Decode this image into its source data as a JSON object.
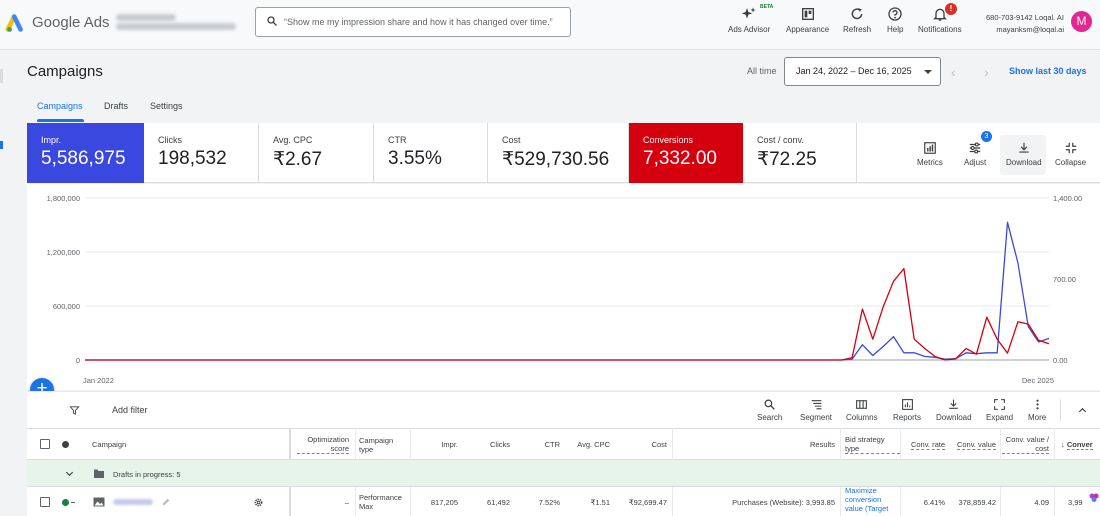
{
  "app": {
    "brand": "Google Ads"
  },
  "search": {
    "placeholder": "“Show me my impression share and how it has changed over time.”"
  },
  "header_tools": [
    {
      "label": "Ads Advisor",
      "icon": "sparkle-icon",
      "badge": "BETA"
    },
    {
      "label": "Appearance",
      "icon": "appearance-icon"
    },
    {
      "label": "Refresh",
      "icon": "refresh-icon"
    },
    {
      "label": "Help",
      "icon": "help-icon"
    },
    {
      "label": "Notifications",
      "icon": "bell-icon",
      "badge": "!"
    }
  ],
  "account": {
    "phone": "680-703-9142 Loqal. AI",
    "email": "mayanksm@loqal.ai",
    "avatar": "M",
    "avatar_color": "#e52592"
  },
  "page": {
    "title": "Campaigns",
    "date_label": "All time",
    "date_range": "Jan 24, 2022 – Dec 16, 2025",
    "show_last": "Show last 30 days"
  },
  "tabs": [
    {
      "label": "Campaigns",
      "active": true
    },
    {
      "label": "Drafts"
    },
    {
      "label": "Settings"
    }
  ],
  "metrics": [
    {
      "label": "Impr.",
      "value": "5,586,975",
      "color": "#3b48e0"
    },
    {
      "label": "Clicks",
      "value": "198,532"
    },
    {
      "label": "Avg. CPC",
      "value": "₹2.67"
    },
    {
      "label": "CTR",
      "value": "3.55%"
    },
    {
      "label": "Cost",
      "value": "₹529,730.56"
    },
    {
      "label": "Conversions",
      "value": "7,332.00",
      "color": "#d5000e"
    },
    {
      "label": "Cost / conv.",
      "value": "₹72.25"
    }
  ],
  "metric_tools": [
    {
      "label": "Metrics",
      "icon": "metrics-icon"
    },
    {
      "label": "Adjust",
      "icon": "tune-icon",
      "badge": "3"
    },
    {
      "label": "Download",
      "icon": "download-icon"
    },
    {
      "label": "Collapse",
      "icon": "collapse-icon"
    }
  ],
  "chart_data": {
    "type": "line",
    "x_start_label": "Jan 2022",
    "x_end_label": "Dec 2025",
    "left_ticks": [
      "1,800,000",
      "1,200,000",
      "600,000",
      "0"
    ],
    "right_ticks": [
      "1,400.00",
      "700.00",
      "0.00"
    ],
    "ylim_left": [
      0,
      1800000
    ],
    "ylim_right": [
      0,
      1400
    ],
    "grid": true,
    "series": [
      {
        "color": "#3b48e0",
        "axis": "left",
        "values": [
          0,
          0,
          0,
          0,
          0,
          0,
          0,
          0,
          0,
          0,
          0,
          0,
          0,
          0,
          0,
          0,
          0,
          0,
          0,
          0,
          0,
          0,
          0,
          0,
          0,
          0,
          0,
          0,
          0,
          0,
          0,
          0,
          0,
          0,
          0,
          0,
          0,
          0,
          0,
          0,
          0,
          0,
          0,
          0,
          0,
          0,
          0,
          0,
          0,
          0,
          0,
          0,
          0,
          0,
          0,
          0,
          0,
          0,
          0,
          0,
          0,
          0,
          0,
          0,
          0,
          0,
          0,
          0,
          0,
          0,
          0,
          0,
          0,
          0,
          10000,
          170000,
          50000,
          150000,
          260000,
          80000,
          80000,
          40000,
          30000,
          10000,
          15000,
          80000,
          70000,
          80000,
          80000,
          1530000,
          1080000,
          370000,
          200000,
          240000
        ]
      },
      {
        "color": "#d5000e",
        "axis": "right",
        "values": [
          0,
          0,
          0,
          0,
          0,
          0,
          0,
          0,
          0,
          0,
          0,
          0,
          0,
          0,
          0,
          0,
          0,
          0,
          0,
          0,
          0,
          0,
          0,
          0,
          0,
          0,
          0,
          0,
          0,
          0,
          0,
          0,
          0,
          0,
          0,
          0,
          0,
          0,
          0,
          0,
          0,
          0,
          0,
          0,
          0,
          0,
          0,
          0,
          0,
          0,
          0,
          0,
          0,
          0,
          0,
          0,
          0,
          0,
          0,
          0,
          0,
          0,
          0,
          0,
          0,
          0,
          0,
          0,
          0,
          0,
          0,
          0,
          0,
          0,
          20,
          440,
          180,
          460,
          680,
          790,
          180,
          100,
          30,
          0,
          10,
          100,
          50,
          370,
          180,
          60,
          330,
          310,
          170,
          140
        ]
      }
    ]
  },
  "toolbar": {
    "add_filter": "Add filter",
    "tools": [
      {
        "label": "Search",
        "icon": "search-icon"
      },
      {
        "label": "Segment",
        "icon": "segment-icon"
      },
      {
        "label": "Columns",
        "icon": "columns-icon"
      },
      {
        "label": "Reports",
        "icon": "reports-icon"
      },
      {
        "label": "Download",
        "icon": "download-icon"
      },
      {
        "label": "Expand",
        "icon": "expand-icon"
      },
      {
        "label": "More",
        "icon": "more-icon"
      }
    ]
  },
  "table": {
    "headers": {
      "campaign": "Campaign",
      "opt_score": "Optimization score",
      "campaign_type": "Campaign type",
      "impr": "Impr.",
      "clicks": "Clicks",
      "ctr": "CTR",
      "avg_cpc": "Avg. CPC",
      "cost": "Cost",
      "results": "Results",
      "bid_strategy": "Bid strategy type",
      "conv_rate": "Conv. rate",
      "conv_value": "Conv. value",
      "conv_value_cost": "Conv. value / cost",
      "conversions": "Conver"
    },
    "draft_row": {
      "label": "Drafts in progress: 5"
    },
    "row": {
      "opt_score": "–",
      "campaign_type": "Performance Max",
      "impr": "817,205",
      "clicks": "61,492",
      "ctr": "7.52%",
      "avg_cpc": "₹1.51",
      "cost": "₹92,699.47",
      "results": "Purchases (Website): 3,993.85",
      "bid_strategy": "Maximize conversion value (Target ROAS)",
      "conv_rate": "6.41%",
      "conv_value": "378,859.42",
      "conv_value_cost": "4.09",
      "conversions": "3,99"
    }
  }
}
